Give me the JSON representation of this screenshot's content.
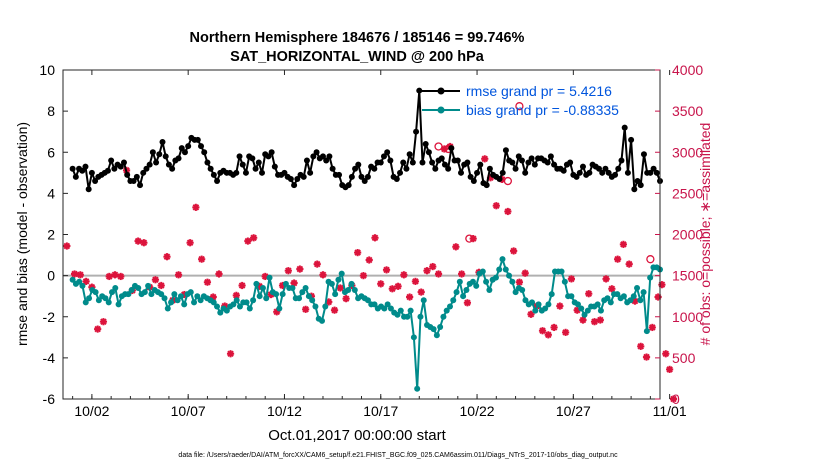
{
  "chart_data": {
    "type": "line",
    "title": [
      "Northern Hemisphere 184676 / 185146 = 99.746%",
      "SAT_HORIZONTAL_WIND @ 200 hPa"
    ],
    "xlabel": "Oct.01,2017 00:00:00 start",
    "ylabel_left": "rmse and bias (model - observation)",
    "ylabel_right": "# of obs: o=possible; ∗=assimilated",
    "footer": "data file: /Users/raeder/DAI/ATM_forcXX/CAM6_setup/f.e21.FHIST_BGC.f09_025.CAM6assim.011/Diags_NTrS_2017-10/obs_diag_output.nc",
    "x_range_days": [
      0.5,
      31.5
    ],
    "x_ticks": [
      {
        "day": 2,
        "label": "10/02"
      },
      {
        "day": 7,
        "label": "10/07"
      },
      {
        "day": 12,
        "label": "10/12"
      },
      {
        "day": 17,
        "label": "10/17"
      },
      {
        "day": 22,
        "label": "10/22"
      },
      {
        "day": 27,
        "label": "10/27"
      },
      {
        "day": 32,
        "label": "11/01"
      }
    ],
    "ylim_left": [
      -6,
      10
    ],
    "yticks_left": [
      -6,
      -4,
      -2,
      0,
      2,
      4,
      6,
      8,
      10
    ],
    "ylim_right": [
      0,
      4000
    ],
    "yticks_right": [
      0,
      500,
      1000,
      1500,
      2000,
      2500,
      3000,
      3500,
      4000
    ],
    "zero_line": 0,
    "series": [
      {
        "name": "rmse grand pr = 5.4216",
        "axis": "left",
        "color": "#000000",
        "values": [
          5.2,
          4.8,
          5.2,
          5.1,
          5.3,
          4.2,
          5.0,
          4.6,
          4.8,
          4.9,
          5.0,
          5.1,
          5.6,
          5.2,
          5.4,
          5.3,
          5.5,
          4.9,
          4.6,
          4.6,
          4.8,
          4.4,
          5.0,
          5.2,
          5.4,
          6.0,
          5.5,
          5.9,
          6.5,
          5.8,
          5.4,
          5.2,
          5.6,
          5.7,
          6.2,
          6.0,
          6.3,
          6.7,
          6.6,
          6.6,
          6.3,
          6.0,
          5.5,
          5.2,
          4.9,
          4.6,
          5.0,
          5.1,
          5.0,
          5.0,
          4.9,
          5.0,
          5.8,
          5.4,
          5.0,
          5.8,
          5.7,
          5.2,
          5.5,
          5.0,
          5.9,
          5.8,
          6.0,
          5.3,
          4.9,
          4.9,
          5.0,
          4.8,
          4.7,
          4.4,
          4.7,
          4.9,
          4.8,
          5.6,
          5.0,
          5.8,
          6.0,
          5.7,
          5.8,
          5.6,
          5.8,
          5.2,
          4.9,
          4.9,
          4.4,
          4.3,
          4.4,
          4.8,
          5.2,
          5.4,
          4.8,
          4.6,
          4.8,
          5.3,
          5.2,
          5.5,
          5.5,
          5.8,
          6.0,
          5.6,
          4.8,
          4.7,
          5.0,
          5.5,
          5.2,
          5.9,
          5.5,
          7.0,
          9.0,
          5.5,
          6.4,
          6.0,
          5.5,
          5.2,
          5.6,
          5.7,
          5.4,
          5.2,
          6.2,
          5.6,
          5.6,
          5.0,
          5.4,
          5.5,
          4.8,
          4.6,
          5.0,
          5.4,
          4.5,
          4.4,
          5.2,
          4.9,
          4.8,
          4.7,
          5.0,
          6.1,
          5.6,
          5.5,
          5.2,
          5.8,
          5.6,
          5.0,
          5.5,
          5.7,
          5.4,
          5.7,
          5.7,
          5.6,
          5.5,
          5.8,
          5.4,
          5.2,
          5.2,
          5.1,
          5.4,
          5.5,
          4.9,
          4.8,
          5.0,
          5.3,
          4.9,
          5.0,
          5.4,
          5.3,
          5.2,
          5.0,
          5.2,
          5.0,
          4.8,
          4.9,
          5.2,
          5.6,
          7.2,
          5.0,
          6.6,
          4.2,
          4.6,
          4.4,
          5.9,
          5.0,
          5.0,
          5.2,
          5.0,
          4.6
        ]
      },
      {
        "name": "bias grand pr = -0.88335",
        "axis": "left",
        "color": "#008b8b",
        "values": [
          -0.2,
          -0.4,
          -0.3,
          -0.5,
          -1.3,
          -1.1,
          -0.7,
          -0.8,
          -1.2,
          -1.0,
          -1.1,
          -1.3,
          -0.8,
          -0.6,
          -1.4,
          -1.0,
          -0.9,
          -0.9,
          -0.7,
          -0.5,
          -0.6,
          -0.9,
          -0.8,
          -0.5,
          -0.9,
          -0.7,
          -0.8,
          -0.9,
          -1.1,
          -1.6,
          -1.3,
          -0.9,
          -1.2,
          -1.0,
          -1.4,
          -0.9,
          -0.8,
          -1.3,
          -1.0,
          -1.2,
          -1.0,
          -1.1,
          -1.2,
          -1.3,
          -1.5,
          -1.8,
          -1.6,
          -1.7,
          -1.5,
          -1.4,
          -1.2,
          -1.5,
          -1.3,
          -1.3,
          -1.6,
          -1.2,
          -0.4,
          -1.0,
          -0.6,
          -1.1,
          -0.1,
          -0.8,
          -0.9,
          -1.6,
          -0.9,
          -0.4,
          -0.6,
          -0.6,
          -1.1,
          -1.1,
          -0.8,
          -0.6,
          -1.0,
          -1.2,
          -1.5,
          -2.1,
          -2.2,
          -1.5,
          -0.3,
          -0.4,
          -0.9,
          -0.2,
          0.1,
          -0.8,
          -0.7,
          -0.4,
          -0.7,
          -1.1,
          -1.0,
          -1.1,
          -1.2,
          -1.4,
          -1.4,
          -1.6,
          -1.5,
          -1.6,
          -1.4,
          -1.6,
          -1.8,
          -1.9,
          -1.7,
          -2.0,
          -2.0,
          -1.7,
          -3.0,
          -5.5,
          -2.0,
          -1.2,
          -2.4,
          -2.5,
          -2.6,
          -2.9,
          -2.5,
          -2.0,
          -1.7,
          -1.5,
          -1.2,
          -0.8,
          -0.3,
          -1.0,
          -0.7,
          -0.4,
          -0.3,
          -0.5,
          0.1,
          0.2,
          -0.3,
          -0.7,
          -0.2,
          -0.1,
          0.3,
          0.8,
          0.3,
          0.0,
          -0.3,
          -0.8,
          -0.6,
          -0.7,
          -1.2,
          -1.4,
          -1.3,
          -1.7,
          -1.4,
          -1.7,
          -1.6,
          -1.4,
          -0.9,
          0.2,
          0.2,
          0.2,
          -0.3,
          -1.0,
          -1.0,
          -1.3,
          -1.4,
          -1.6,
          -1.9,
          -1.7,
          -1.5,
          -1.5,
          -1.4,
          -1.7,
          -1.2,
          -1.1,
          -1.3,
          -0.9,
          -0.9,
          -1.1,
          -1.0,
          -1.3,
          -1.2,
          -1.0,
          -0.6,
          -1.2,
          -0.8,
          -2.7,
          -0.1,
          0.4,
          0.4,
          0.3
        ]
      }
    ],
    "obs_assimilated": {
      "axis": "right",
      "color": "#dc143c",
      "points": [
        [
          0.7,
          1860
        ],
        [
          1.1,
          1520
        ],
        [
          1.4,
          1510
        ],
        [
          1.7,
          1430
        ],
        [
          2.0,
          1360
        ],
        [
          2.3,
          850
        ],
        [
          2.6,
          940
        ],
        [
          2.9,
          1490
        ],
        [
          3.2,
          1510
        ],
        [
          3.5,
          1490
        ],
        [
          3.8,
          2780
        ],
        [
          4.1,
          1320
        ],
        [
          4.4,
          1920
        ],
        [
          4.7,
          1900
        ],
        [
          5.0,
          1360
        ],
        [
          5.3,
          1450
        ],
        [
          5.6,
          1380
        ],
        [
          5.9,
          1730
        ],
        [
          6.2,
          1200
        ],
        [
          6.5,
          1510
        ],
        [
          6.8,
          1270
        ],
        [
          7.1,
          1900
        ],
        [
          7.4,
          2330
        ],
        [
          7.7,
          1700
        ],
        [
          8.0,
          1420
        ],
        [
          8.3,
          1240
        ],
        [
          8.6,
          1520
        ],
        [
          8.9,
          1130
        ],
        [
          9.2,
          550
        ],
        [
          9.5,
          1260
        ],
        [
          9.8,
          1380
        ],
        [
          10.1,
          1920
        ],
        [
          10.4,
          1960
        ],
        [
          10.7,
          1370
        ],
        [
          11.0,
          1490
        ],
        [
          11.3,
          1270
        ],
        [
          11.6,
          1060
        ],
        [
          11.9,
          1380
        ],
        [
          12.2,
          1560
        ],
        [
          12.5,
          1410
        ],
        [
          12.8,
          1580
        ],
        [
          13.1,
          1090
        ],
        [
          13.4,
          1250
        ],
        [
          13.7,
          1640
        ],
        [
          14.0,
          1510
        ],
        [
          14.3,
          1180
        ],
        [
          14.6,
          1080
        ],
        [
          14.9,
          1350
        ],
        [
          15.2,
          1220
        ],
        [
          15.5,
          1380
        ],
        [
          15.8,
          1780
        ],
        [
          16.1,
          1500
        ],
        [
          16.4,
          1690
        ],
        [
          16.7,
          1960
        ],
        [
          17.0,
          1400
        ],
        [
          17.3,
          1570
        ],
        [
          17.6,
          1340
        ],
        [
          17.9,
          1370
        ],
        [
          18.2,
          1510
        ],
        [
          18.5,
          1240
        ],
        [
          18.8,
          1430
        ],
        [
          19.1,
          1300
        ],
        [
          19.4,
          1560
        ],
        [
          19.7,
          1610
        ],
        [
          20.0,
          1520
        ],
        [
          20.3,
          3040
        ],
        [
          20.6,
          3070
        ],
        [
          20.9,
          1850
        ],
        [
          21.2,
          1520
        ],
        [
          21.5,
          1170
        ],
        [
          21.8,
          1950
        ],
        [
          22.1,
          1540
        ],
        [
          22.4,
          2920
        ],
        [
          22.7,
          2690
        ],
        [
          23.0,
          2350
        ],
        [
          23.3,
          2670
        ],
        [
          23.6,
          2280
        ],
        [
          23.9,
          1800
        ],
        [
          24.2,
          1420
        ],
        [
          24.5,
          1530
        ],
        [
          24.8,
          1030
        ],
        [
          25.1,
          1130
        ],
        [
          25.4,
          830
        ],
        [
          25.7,
          780
        ],
        [
          26.0,
          870
        ],
        [
          26.3,
          1130
        ],
        [
          26.6,
          810
        ],
        [
          26.9,
          1460
        ],
        [
          27.2,
          1080
        ],
        [
          27.5,
          960
        ],
        [
          27.8,
          1280
        ],
        [
          28.1,
          940
        ],
        [
          28.4,
          960
        ],
        [
          28.7,
          1460
        ],
        [
          29.0,
          1340
        ],
        [
          29.3,
          1700
        ],
        [
          29.6,
          1880
        ],
        [
          29.9,
          1640
        ],
        [
          30.2,
          1190
        ],
        [
          30.5,
          640
        ],
        [
          30.8,
          510
        ],
        [
          31.1,
          870
        ],
        [
          31.4,
          1240
        ],
        [
          31.6,
          1390
        ],
        [
          31.8,
          550
        ],
        [
          32.0,
          360
        ],
        [
          32.2,
          0
        ]
      ]
    },
    "obs_possible": {
      "axis": "right",
      "color": "#dc143c",
      "points": [
        [
          20.0,
          3070
        ],
        [
          20.5,
          3040
        ],
        [
          21.6,
          1950
        ],
        [
          23.6,
          2650
        ],
        [
          24.2,
          3560
        ],
        [
          31.0,
          1700
        ]
      ]
    }
  },
  "legend": [
    {
      "label": "rmse grand pr = 5.4216",
      "color": "#000000"
    },
    {
      "label": "bias grand pr = -0.88335",
      "color": "#008b8b"
    }
  ],
  "colors": {
    "label_text": "#0055dd",
    "right_axis": "#c8144b",
    "zero_line": "#b0b0b0"
  }
}
